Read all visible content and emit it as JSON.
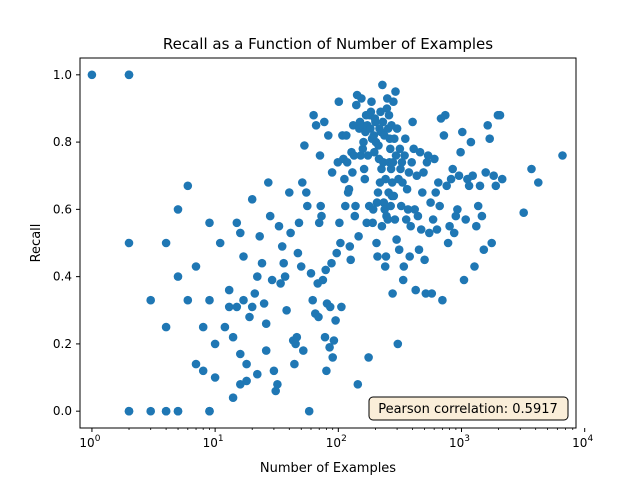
{
  "chart_data": {
    "type": "scatter",
    "title": "Recall as a Function of Number of Examples",
    "xlabel": "Number of Examples",
    "ylabel": "Recall",
    "xscale": "log",
    "xlim": [
      0.8,
      8500
    ],
    "ylim": [
      -0.05,
      1.05
    ],
    "grid": false,
    "legend": "none",
    "marker_color": "#1f77b4",
    "xticks": [
      1,
      10,
      100,
      1000,
      10000
    ],
    "xtick_labels": [
      {
        "base": "10",
        "exp": "0"
      },
      {
        "base": "10",
        "exp": "1"
      },
      {
        "base": "10",
        "exp": "2"
      },
      {
        "base": "10",
        "exp": "3"
      },
      {
        "base": "10",
        "exp": "4"
      }
    ],
    "yticks": [
      0.0,
      0.2,
      0.4,
      0.6,
      0.8,
      1.0
    ],
    "ytick_labels": [
      "0.0",
      "0.2",
      "0.4",
      "0.6",
      "0.8",
      "1.0"
    ],
    "annotation": {
      "text": "Pearson correlation: 0.5917",
      "position": "bottom-right",
      "facecolor": "#f5deb3",
      "edgecolor": "#000000"
    },
    "points": [
      [
        1,
        1.0
      ],
      [
        2,
        1.0
      ],
      [
        2,
        1.0
      ],
      [
        2,
        0.5
      ],
      [
        2,
        0
      ],
      [
        2,
        0
      ],
      [
        3,
        0
      ],
      [
        4,
        0
      ],
      [
        4,
        0.5
      ],
      [
        4,
        0.25
      ],
      [
        3,
        0.33
      ],
      [
        4,
        0
      ],
      [
        5,
        0
      ],
      [
        5,
        0.4
      ],
      [
        5,
        0.6
      ],
      [
        5,
        0
      ],
      [
        6,
        0.33
      ],
      [
        6,
        0.67
      ],
      [
        7,
        0.43
      ],
      [
        7,
        0.14
      ],
      [
        8,
        0.25
      ],
      [
        8,
        0.12
      ],
      [
        9,
        0.33
      ],
      [
        9,
        0.56
      ],
      [
        9,
        0
      ],
      [
        9,
        0
      ],
      [
        10,
        0.1
      ],
      [
        10,
        0.2
      ],
      [
        11,
        0.5
      ],
      [
        12,
        0.25
      ],
      [
        13,
        0.36
      ],
      [
        13,
        0.31
      ],
      [
        14,
        0.22
      ],
      [
        14,
        0.04
      ],
      [
        15,
        0.56
      ],
      [
        15,
        0.31
      ],
      [
        16,
        0.53
      ],
      [
        16,
        0.17
      ],
      [
        16,
        0.08
      ],
      [
        17,
        0.46
      ],
      [
        17,
        0.33
      ],
      [
        18,
        0.09
      ],
      [
        18,
        0.14
      ],
      [
        19,
        0.28
      ],
      [
        20,
        0.63
      ],
      [
        20,
        0.31
      ],
      [
        21,
        0.35
      ],
      [
        22,
        0.11
      ],
      [
        22,
        0.4
      ],
      [
        23,
        0.52
      ],
      [
        24,
        0.44
      ],
      [
        25,
        0.32
      ],
      [
        26,
        0.18
      ],
      [
        26,
        0.26
      ],
      [
        27,
        0.68
      ],
      [
        28,
        0.58
      ],
      [
        29,
        0.39
      ],
      [
        30,
        0.12
      ],
      [
        31,
        0.06
      ],
      [
        32,
        0.08
      ],
      [
        33,
        0.55
      ],
      [
        34,
        0.38
      ],
      [
        35,
        0.49
      ],
      [
        36,
        0.44
      ],
      [
        37,
        0.4
      ],
      [
        38,
        0.3
      ],
      [
        40,
        0.65
      ],
      [
        41,
        0.53
      ],
      [
        43,
        0.21
      ],
      [
        44,
        0.14
      ],
      [
        45,
        0.2
      ],
      [
        46,
        0.22
      ],
      [
        47,
        0.47
      ],
      [
        48,
        0.56
      ],
      [
        50,
        0.43
      ],
      [
        51,
        0.68
      ],
      [
        52,
        0.18
      ],
      [
        53,
        0.79
      ],
      [
        55,
        0.65
      ],
      [
        56,
        0.61
      ],
      [
        58,
        0.0
      ],
      [
        60,
        0.41
      ],
      [
        62,
        0.33
      ],
      [
        63,
        0.88
      ],
      [
        65,
        0.29
      ],
      [
        66,
        0.85
      ],
      [
        68,
        0.38
      ],
      [
        69,
        0.28
      ],
      [
        70,
        0.56
      ],
      [
        71,
        0.76
      ],
      [
        72,
        0.61
      ],
      [
        73,
        0.58
      ],
      [
        75,
        0.39
      ],
      [
        77,
        0.86
      ],
      [
        78,
        0.22
      ],
      [
        79,
        0.42
      ],
      [
        80,
        0.12
      ],
      [
        81,
        0.32
      ],
      [
        83,
        0.82
      ],
      [
        85,
        0.19
      ],
      [
        86,
        0.31
      ],
      [
        88,
        0.44
      ],
      [
        89,
        0.71
      ],
      [
        90,
        0.16
      ],
      [
        92,
        0.21
      ],
      [
        95,
        0.27
      ],
      [
        97,
        0.47
      ],
      [
        99,
        0.74
      ],
      [
        101,
        0.92
      ],
      [
        102,
        0.56
      ],
      [
        104,
        0.5
      ],
      [
        106,
        0.31
      ],
      [
        108,
        0.82
      ],
      [
        110,
        0.75
      ],
      [
        112,
        0.69
      ],
      [
        114,
        0.61
      ],
      [
        116,
        0.82
      ],
      [
        118,
        0.74
      ],
      [
        120,
        0.65
      ],
      [
        122,
        0.66
      ],
      [
        124,
        0.49
      ],
      [
        126,
        0.45
      ],
      [
        128,
        0.77
      ],
      [
        130,
        0.71
      ],
      [
        132,
        0.85
      ],
      [
        134,
        0.76
      ],
      [
        136,
        0.58
      ],
      [
        138,
        0.61
      ],
      [
        140,
        0.91
      ],
      [
        142,
        0.94
      ],
      [
        144,
        0.08
      ],
      [
        146,
        0.52
      ],
      [
        148,
        0.84
      ],
      [
        150,
        0.86
      ],
      [
        152,
        0.76
      ],
      [
        154,
        0.93
      ],
      [
        156,
        0.85
      ],
      [
        158,
        0.78
      ],
      [
        160,
        0.8
      ],
      [
        162,
        0.72
      ],
      [
        164,
        0.69
      ],
      [
        166,
        0.83
      ],
      [
        168,
        0.88
      ],
      [
        170,
        0.56
      ],
      [
        172,
        0.85
      ],
      [
        174,
        0.76
      ],
      [
        176,
        0.16
      ],
      [
        178,
        0.61
      ],
      [
        180,
        0.88
      ],
      [
        182,
        0.84
      ],
      [
        184,
        0.89
      ],
      [
        186,
        0.92
      ],
      [
        188,
        0.81
      ],
      [
        190,
        0.56
      ],
      [
        192,
        0.6
      ],
      [
        194,
        0.82
      ],
      [
        196,
        0.77
      ],
      [
        198,
        0.87
      ],
      [
        200,
        0.86
      ],
      [
        202,
        0.8
      ],
      [
        204,
        0.5
      ],
      [
        206,
        0.62
      ],
      [
        208,
        0.46
      ],
      [
        210,
        0.65
      ],
      [
        212,
        0.79
      ],
      [
        214,
        0.75
      ],
      [
        216,
        0.84
      ],
      [
        218,
        0.68
      ],
      [
        220,
        0.89
      ],
      [
        222,
        0.83
      ],
      [
        224,
        0.72
      ],
      [
        226,
        0.55
      ],
      [
        228,
        0.97
      ],
      [
        230,
        0.86
      ],
      [
        232,
        0.74
      ],
      [
        234,
        0.62
      ],
      [
        236,
        0.82
      ],
      [
        238,
        0.6
      ],
      [
        240,
        0.43
      ],
      [
        242,
        0.69
      ],
      [
        244,
        0.46
      ],
      [
        246,
        0.58
      ],
      [
        248,
        0.9
      ],
      [
        250,
        0.93
      ],
      [
        252,
        0.57
      ],
      [
        254,
        0.84
      ],
      [
        256,
        0.65
      ],
      [
        258,
        0.88
      ],
      [
        260,
        0.74
      ],
      [
        262,
        0.81
      ],
      [
        264,
        0.78
      ],
      [
        266,
        0.61
      ],
      [
        268,
        0.72
      ],
      [
        270,
        0.85
      ],
      [
        272,
        0.64
      ],
      [
        274,
        0.68
      ],
      [
        276,
        0.35
      ],
      [
        278,
        0.74
      ],
      [
        280,
        0.92
      ],
      [
        282,
        0.64
      ],
      [
        285,
        0.81
      ],
      [
        288,
        0.57
      ],
      [
        291,
        0.95
      ],
      [
        294,
        0.76
      ],
      [
        297,
        0.51
      ],
      [
        300,
        0.84
      ],
      [
        304,
        0.2
      ],
      [
        308,
        0.69
      ],
      [
        312,
        0.48
      ],
      [
        316,
        0.78
      ],
      [
        320,
        0.72
      ],
      [
        324,
        0.61
      ],
      [
        328,
        0.74
      ],
      [
        332,
        0.68
      ],
      [
        336,
        0.39
      ],
      [
        340,
        0.43
      ],
      [
        345,
        0.76
      ],
      [
        350,
        0.81
      ],
      [
        356,
        0.57
      ],
      [
        362,
        0.66
      ],
      [
        368,
        0.6
      ],
      [
        374,
        0.71
      ],
      [
        380,
        0.46
      ],
      [
        387,
        0.55
      ],
      [
        394,
        0.74
      ],
      [
        401,
        0.86
      ],
      [
        409,
        0.78
      ],
      [
        417,
        0.6
      ],
      [
        425,
        0.36
      ],
      [
        434,
        0.7
      ],
      [
        443,
        0.58
      ],
      [
        452,
        0.48
      ],
      [
        461,
        0.77
      ],
      [
        471,
        0.54
      ],
      [
        481,
        0.65
      ],
      [
        491,
        0.71
      ],
      [
        502,
        0.45
      ],
      [
        513,
        0.35
      ],
      [
        524,
        0.74
      ],
      [
        536,
        0.76
      ],
      [
        548,
        0.53
      ],
      [
        561,
        0.62
      ],
      [
        574,
        0.35
      ],
      [
        588,
        0.57
      ],
      [
        602,
        0.75
      ],
      [
        617,
        0.65
      ],
      [
        632,
        0.54
      ],
      [
        648,
        0.68
      ],
      [
        665,
        0.61
      ],
      [
        682,
        0.87
      ],
      [
        700,
        0.33
      ],
      [
        719,
        0.82
      ],
      [
        738,
        0.88
      ],
      [
        758,
        0.67
      ],
      [
        779,
        0.5
      ],
      [
        801,
        0.55
      ],
      [
        824,
        0.69
      ],
      [
        848,
        0.72
      ],
      [
        873,
        0.53
      ],
      [
        899,
        0.58
      ],
      [
        926,
        0.6
      ],
      [
        954,
        0.7
      ],
      [
        984,
        0.77
      ],
      [
        1015,
        0.83
      ],
      [
        1047,
        0.39
      ],
      [
        1081,
        0.57
      ],
      [
        1116,
        0.69
      ],
      [
        1153,
        0.67
      ],
      [
        1192,
        0.8
      ],
      [
        1232,
        0.7
      ],
      [
        1274,
        0.43
      ],
      [
        1318,
        0.55
      ],
      [
        1365,
        0.61
      ],
      [
        1413,
        0.67
      ],
      [
        1464,
        0.58
      ],
      [
        1517,
        0.48
      ],
      [
        1573,
        0.71
      ],
      [
        1632,
        0.85
      ],
      [
        1694,
        0.81
      ],
      [
        1759,
        0.5
      ],
      [
        1827,
        0.7
      ],
      [
        1899,
        0.67
      ],
      [
        1975,
        0.88
      ],
      [
        2054,
        0.88
      ],
      [
        2138,
        0.69
      ],
      [
        3200,
        0.59
      ],
      [
        3700,
        0.72
      ],
      [
        4200,
        0.68
      ],
      [
        6600,
        0.76
      ]
    ]
  }
}
